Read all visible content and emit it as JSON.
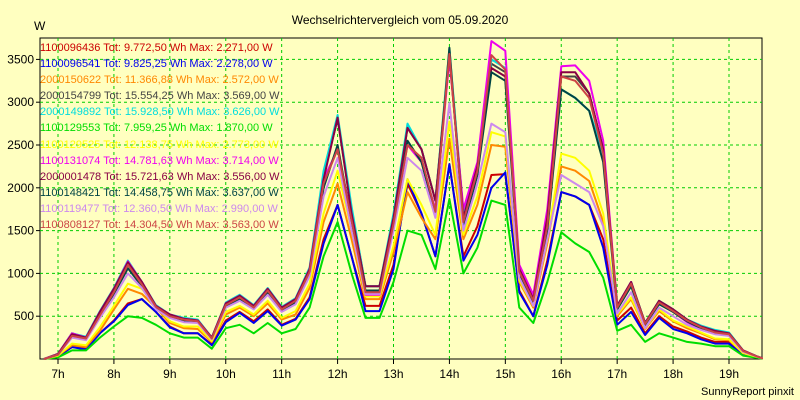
{
  "chart_data": {
    "type": "line",
    "title": "Wechselrichtervergleich vom 05.09.2020",
    "ylabel": "W",
    "footer": "SunnyReport pinxit",
    "ylim": [
      0,
      3750
    ],
    "yticks": [
      500,
      1000,
      1500,
      2000,
      2500,
      3000,
      3500
    ],
    "xlim": [
      6.75,
      20.3
    ],
    "xticks": [
      7,
      8,
      9,
      10,
      11,
      12,
      13,
      14,
      15,
      16,
      17,
      18,
      19
    ],
    "xtick_labels": [
      "7h",
      "8h",
      "9h",
      "10h",
      "11h",
      "12h",
      "13h",
      "14h",
      "15h",
      "16h",
      "17h",
      "18h",
      "19h"
    ],
    "grid": true,
    "legend_position": "top-left",
    "x": [
      6.75,
      7.0,
      7.25,
      7.5,
      7.75,
      8.0,
      8.25,
      8.5,
      8.75,
      9.0,
      9.25,
      9.5,
      9.75,
      10.0,
      10.25,
      10.5,
      10.75,
      11.0,
      11.25,
      11.5,
      11.75,
      12.0,
      12.25,
      12.5,
      12.75,
      13.0,
      13.25,
      13.5,
      13.75,
      14.0,
      14.25,
      14.5,
      14.75,
      15.0,
      15.25,
      15.5,
      15.75,
      16.0,
      16.25,
      16.5,
      16.75,
      17.0,
      17.25,
      17.5,
      17.75,
      18.0,
      18.25,
      18.5,
      18.75,
      19.0,
      19.25,
      19.5,
      19.75,
      20.0,
      20.3
    ],
    "series": [
      {
        "name": "1100096436 Tot: 9.772,50 Wh Max: 2.271,00 W",
        "color": "#cc0000",
        "values": [
          0,
          30,
          140,
          120,
          300,
          450,
          650,
          700,
          550,
          380,
          300,
          300,
          170,
          450,
          550,
          440,
          580,
          400,
          470,
          720,
          1400,
          1800,
          1200,
          620,
          620,
          1100,
          2050,
          1700,
          1200,
          2271,
          1200,
          1550,
          2150,
          2160,
          800,
          500,
          1150,
          1950,
          1900,
          1800,
          1400,
          450,
          600,
          300,
          500,
          380,
          320,
          250,
          200,
          200,
          60,
          20,
          10,
          0,
          0
        ]
      },
      {
        "name": "1100096541 Tot: 9.825,25 Wh Max: 2.278,00 W",
        "color": "#0000ee",
        "values": [
          0,
          30,
          140,
          110,
          300,
          440,
          630,
          700,
          550,
          370,
          300,
          300,
          160,
          430,
          540,
          420,
          560,
          390,
          460,
          700,
          1350,
          1800,
          1200,
          560,
          560,
          1050,
          2100,
          1700,
          1200,
          2278,
          1150,
          1450,
          2000,
          2180,
          780,
          500,
          1100,
          1950,
          1900,
          1800,
          1300,
          400,
          550,
          280,
          480,
          350,
          300,
          230,
          180,
          180,
          50,
          20,
          10,
          0,
          0
        ]
      },
      {
        "name": "2000150622 Tot: 11.366,88 Wh Max: 2.572,00 W",
        "color": "#ff8800",
        "values": [
          0,
          40,
          160,
          140,
          330,
          580,
          820,
          760,
          600,
          420,
          360,
          350,
          200,
          520,
          600,
          500,
          650,
          460,
          520,
          830,
          1600,
          2050,
          1400,
          700,
          700,
          1250,
          1950,
          1650,
          1400,
          2572,
          1400,
          1800,
          2500,
          2480,
          900,
          600,
          1350,
          2250,
          2200,
          2080,
          1600,
          500,
          700,
          350,
          560,
          440,
          360,
          300,
          230,
          220,
          70,
          25,
          10,
          0,
          0
        ]
      },
      {
        "name": "2000154799 Tot: 15.554,25 Wh Max: 3.569,00 W",
        "color": "#444444",
        "values": [
          0,
          60,
          300,
          250,
          550,
          820,
          1140,
          900,
          620,
          520,
          470,
          450,
          250,
          650,
          740,
          620,
          820,
          600,
          700,
          1050,
          2150,
          2800,
          1750,
          850,
          850,
          1650,
          2700,
          2450,
          1850,
          3569,
          1650,
          2250,
          3450,
          3350,
          1050,
          700,
          1650,
          3300,
          3300,
          3100,
          2450,
          620,
          900,
          420,
          680,
          580,
          460,
          380,
          330,
          300,
          100,
          30,
          10,
          0,
          0
        ]
      },
      {
        "name": "2000149892 Tot: 15.928,50 Wh Max: 3.626,00 W",
        "color": "#00dddd",
        "values": [
          0,
          60,
          300,
          260,
          560,
          830,
          1150,
          900,
          630,
          520,
          480,
          460,
          250,
          660,
          750,
          630,
          830,
          610,
          710,
          1070,
          2200,
          2850,
          1780,
          850,
          850,
          1700,
          2750,
          2450,
          1850,
          3626,
          1700,
          2200,
          3500,
          3400,
          1050,
          700,
          1650,
          3150,
          3050,
          2900,
          2400,
          620,
          900,
          420,
          680,
          580,
          460,
          390,
          340,
          310,
          100,
          30,
          10,
          0,
          0
        ]
      },
      {
        "name": "1100129553 Tot: 7.959,25 Wh Max: 1.870,00 W",
        "color": "#00dd00",
        "values": [
          0,
          20,
          100,
          100,
          250,
          380,
          500,
          480,
          400,
          300,
          250,
          250,
          120,
          360,
          400,
          300,
          420,
          300,
          350,
          600,
          1200,
          1600,
          1000,
          480,
          480,
          900,
          1500,
          1450,
          1050,
          1870,
          1000,
          1300,
          1850,
          1800,
          600,
          420,
          900,
          1480,
          1350,
          1250,
          950,
          330,
          400,
          200,
          300,
          250,
          200,
          180,
          150,
          150,
          40,
          15,
          5,
          0,
          0
        ]
      },
      {
        "name": "1100129525 Tot: 12.138,75 Wh Max: 2.773,00 W",
        "color": "#ffff00",
        "values": [
          0,
          40,
          180,
          160,
          370,
          620,
          880,
          820,
          620,
          440,
          380,
          380,
          210,
          550,
          620,
          520,
          680,
          480,
          560,
          880,
          1700,
          2200,
          1500,
          730,
          730,
          1320,
          2100,
          1800,
          1450,
          2773,
          1450,
          1900,
          2650,
          2600,
          920,
          620,
          1400,
          2400,
          2350,
          2200,
          1700,
          520,
          720,
          360,
          580,
          450,
          380,
          310,
          240,
          230,
          70,
          25,
          10,
          0,
          0
        ]
      },
      {
        "name": "1100131074 Tot: 14.781,63 Wh Max: 3.714,00 W",
        "color": "#ee00ee",
        "values": [
          0,
          60,
          300,
          250,
          550,
          820,
          1140,
          900,
          620,
          520,
          470,
          450,
          250,
          650,
          740,
          620,
          820,
          600,
          700,
          1050,
          2100,
          2450,
          1650,
          750,
          750,
          1600,
          2500,
          2300,
          1750,
          3500,
          1750,
          2300,
          3714,
          3600,
          1100,
          750,
          1750,
          3420,
          3430,
          3250,
          2550,
          620,
          900,
          400,
          650,
          550,
          430,
          350,
          320,
          290,
          100,
          30,
          10,
          0,
          0
        ]
      },
      {
        "name": "2000001478 Tot: 15.721,63 Wh Max: 3.556,00 W",
        "color": "#880044",
        "values": [
          0,
          60,
          290,
          250,
          550,
          820,
          1130,
          900,
          620,
          520,
          470,
          450,
          250,
          650,
          740,
          620,
          820,
          600,
          700,
          1050,
          2100,
          2820,
          1700,
          850,
          850,
          1650,
          2700,
          2450,
          1850,
          3556,
          1650,
          2250,
          3400,
          3300,
          1050,
          700,
          1650,
          3350,
          3350,
          3100,
          2450,
          620,
          900,
          420,
          680,
          580,
          460,
          380,
          330,
          300,
          100,
          30,
          10,
          0,
          0
        ]
      },
      {
        "name": "1100148421 Tot: 14.458,75 Wh Max: 3.637,00 W",
        "color": "#004444",
        "values": [
          0,
          50,
          260,
          230,
          500,
          760,
          1060,
          850,
          600,
          500,
          450,
          430,
          240,
          620,
          700,
          600,
          780,
          570,
          660,
          1000,
          2000,
          2500,
          1600,
          800,
          800,
          1550,
          2550,
          2300,
          1700,
          3637,
          1550,
          2150,
          3350,
          3250,
          1000,
          650,
          1500,
          3150,
          3050,
          2900,
          2300,
          580,
          850,
          400,
          640,
          550,
          440,
          360,
          300,
          280,
          90,
          30,
          10,
          0,
          0
        ]
      },
      {
        "name": "1100119477 Tot: 12.360,50 Wh Max: 2.990,00 W",
        "color": "#cc88ee",
        "values": [
          0,
          50,
          250,
          220,
          480,
          720,
          1000,
          830,
          580,
          480,
          430,
          420,
          230,
          600,
          680,
          580,
          750,
          550,
          640,
          970,
          1900,
          2350,
          1500,
          760,
          760,
          1500,
          2350,
          2200,
          1650,
          2990,
          1500,
          2050,
          2750,
          2650,
          950,
          620,
          1400,
          2150,
          2050,
          1950,
          1550,
          530,
          780,
          360,
          600,
          500,
          400,
          340,
          290,
          270,
          85,
          28,
          10,
          0,
          0
        ]
      },
      {
        "name": "1100808127 Tot: 14.304,50 Wh Max: 3.563,00 W",
        "color": "#cc4444",
        "values": [
          0,
          50,
          270,
          240,
          510,
          780,
          1100,
          870,
          610,
          500,
          460,
          440,
          240,
          630,
          720,
          600,
          800,
          580,
          680,
          1020,
          2050,
          2450,
          1620,
          780,
          780,
          1580,
          2500,
          2350,
          1720,
          3563,
          1600,
          2200,
          3550,
          3380,
          1020,
          680,
          1550,
          3300,
          3250,
          3050,
          2400,
          600,
          880,
          410,
          660,
          560,
          450,
          370,
          310,
          290,
          95,
          30,
          10,
          0,
          0
        ]
      }
    ]
  }
}
